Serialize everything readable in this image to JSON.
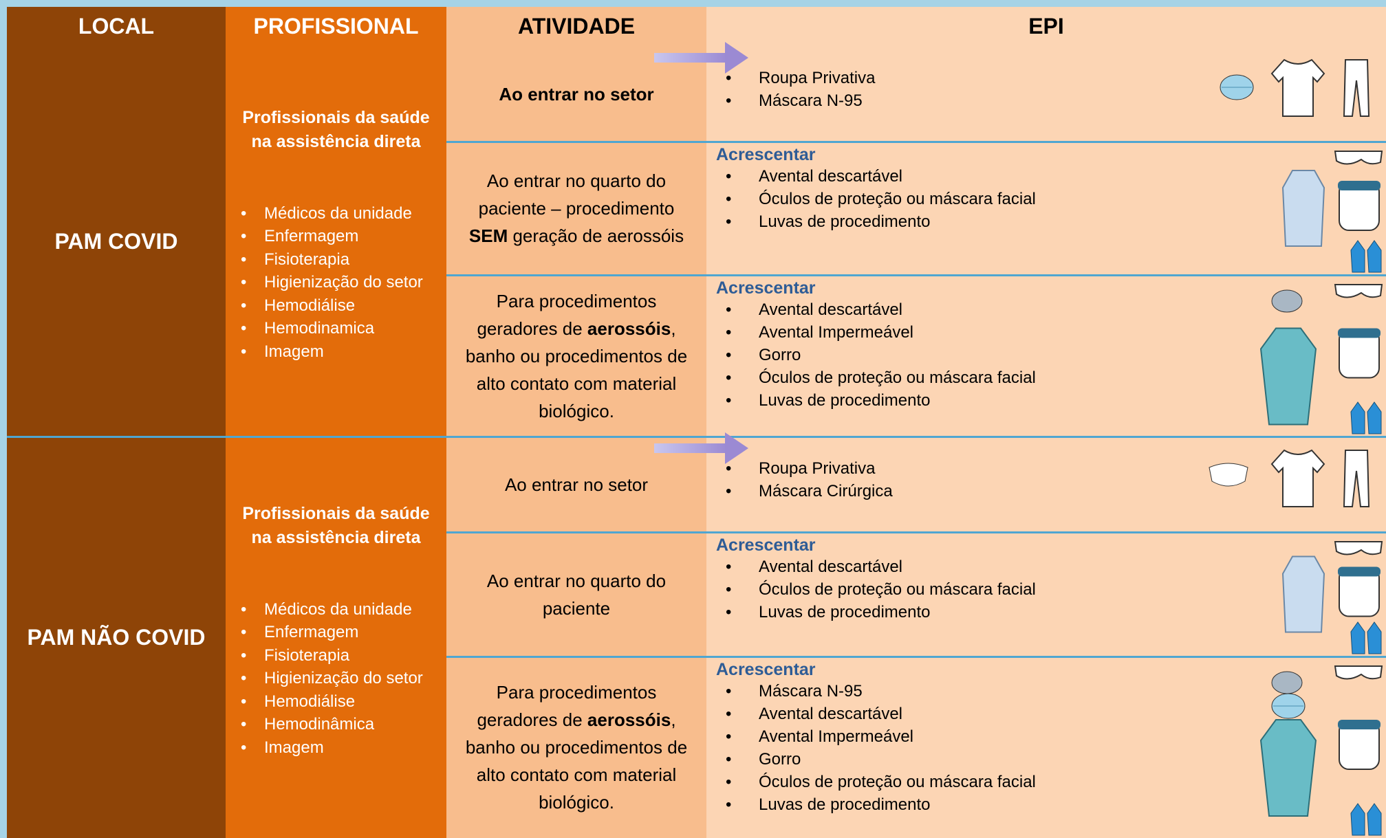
{
  "header": [
    "LOCAL",
    "PROFISSIONAL",
    "ATIVIDADE",
    "EPI"
  ],
  "sections": [
    {
      "local": "PAM COVID",
      "profissional": {
        "title": "Profissionais da saúde na assistência direta",
        "items": [
          "Médicos da unidade",
          "Enfermagem",
          "Fisioterapia",
          "Higienização do setor",
          "Hemodiálise",
          "Hemodinamica",
          "Imagem"
        ]
      },
      "rows": [
        {
          "atividade": [
            {
              "text": "Ao entrar no setor",
              "bold": true
            }
          ],
          "epi": {
            "items": [
              "Roupa Privativa",
              "Máscara N-95"
            ]
          }
        },
        {
          "atividade": [
            {
              "text": "Ao entrar no quarto do paciente – procedimento ",
              "bold": false
            },
            {
              "text": "SEM",
              "bold": true
            },
            {
              "text": " geração de aerossóis",
              "bold": false
            }
          ],
          "epi": {
            "label": "Acrescentar",
            "items": [
              "Avental descartável",
              "Óculos de proteção ou máscara facial",
              "Luvas de procedimento"
            ]
          }
        },
        {
          "atividade": [
            {
              "text": "Para procedimentos geradores de ",
              "bold": false
            },
            {
              "text": "aerossóis",
              "bold": true
            },
            {
              "text": ", banho ou procedimentos de alto contato com material biológico.",
              "bold": false
            }
          ],
          "epi": {
            "label": "Acrescentar",
            "items": [
              "Avental descartável",
              "Avental Impermeável",
              "Gorro",
              "Óculos de proteção ou máscara facial",
              "Luvas de procedimento"
            ]
          }
        }
      ]
    },
    {
      "local": "PAM NÃO COVID",
      "profissional": {
        "title": "Profissionais da saúde na assistência direta",
        "items": [
          "Médicos da unidade",
          "Enfermagem",
          "Fisioterapia",
          "Higienização do setor",
          "Hemodiálise",
          "Hemodinâmica",
          "Imagem"
        ]
      },
      "rows": [
        {
          "atividade": [
            {
              "text": "Ao entrar no setor",
              "bold": false
            }
          ],
          "epi": {
            "items": [
              "Roupa Privativa",
              "Máscara Cirúrgica"
            ]
          }
        },
        {
          "atividade": [
            {
              "text": "Ao entrar no quarto do paciente",
              "bold": false
            }
          ],
          "epi": {
            "label": "Acrescentar",
            "items": [
              "Avental descartável",
              "Óculos de proteção ou máscara facial",
              "Luvas de procedimento"
            ]
          }
        },
        {
          "atividade": [
            {
              "text": "Para procedimentos geradores de ",
              "bold": false
            },
            {
              "text": "aerossóis",
              "bold": true
            },
            {
              "text": ", banho ou procedimentos de alto contato com material biológico.",
              "bold": false
            }
          ],
          "epi": {
            "label": "Acrescentar",
            "items": [
              "Máscara  N-95",
              "Avental descartável",
              "Avental Impermeável",
              "Gorro",
              "Óculos de proteção ou máscara facial",
              "Luvas de procedimento"
            ]
          }
        }
      ]
    }
  ]
}
